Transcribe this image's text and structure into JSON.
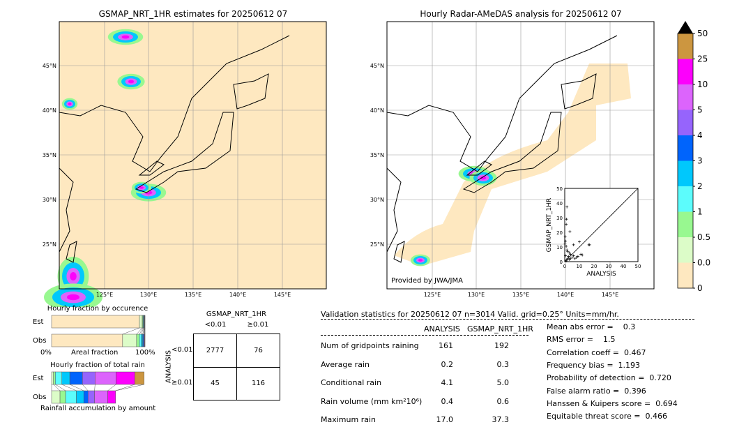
{
  "left_map": {
    "title": "GSMAP_NRT_1HR estimates for 20250612 07",
    "lon_ticks": [
      "125°E",
      "130°E",
      "135°E",
      "140°E",
      "145°E"
    ],
    "lat_ticks": [
      "45°N",
      "40°N",
      "35°N",
      "30°N",
      "25°N"
    ]
  },
  "right_map": {
    "title": "Hourly Radar-AMeDAS analysis for 20250612 07",
    "lon_ticks": [
      "125°E",
      "130°E",
      "135°E",
      "140°E",
      "145°E"
    ],
    "lat_ticks": [
      "45°N",
      "40°N",
      "35°N",
      "30°N",
      "25°N"
    ],
    "credit": "Provided by JWA/JMA"
  },
  "colorbar": {
    "labels": [
      "0",
      "0.01",
      "0.5",
      "1",
      "2",
      "3",
      "4",
      "5",
      "10",
      "25",
      "50"
    ],
    "colors": [
      "#fee8c0",
      "#dcfcc8",
      "#98f890",
      "#5cfcfc",
      "#00c8fc",
      "#0064fc",
      "#9664fc",
      "#dc64fc",
      "#fc00fc",
      "#cc9640"
    ],
    "extend_color": "#000000"
  },
  "chart_data": [
    {
      "type": "scatter",
      "xlabel": "ANALYSIS",
      "ylabel": "GSMAP_NRT_1HR",
      "xlim": [
        0,
        50
      ],
      "ylim": [
        0,
        50
      ],
      "ticks": [
        "0",
        "10",
        "20",
        "30",
        "40",
        "50"
      ],
      "points": [
        [
          1.5,
          37.3
        ],
        [
          1.2,
          29
        ],
        [
          1,
          25.5
        ],
        [
          3.5,
          20.5
        ],
        [
          0.3,
          17
        ],
        [
          0.5,
          14
        ],
        [
          10,
          13.5
        ],
        [
          6,
          11.5
        ],
        [
          16.5,
          11.5
        ],
        [
          17,
          11.5
        ],
        [
          1,
          10.5
        ],
        [
          2,
          7
        ],
        [
          3,
          6
        ],
        [
          4,
          5
        ],
        [
          11,
          5
        ],
        [
          12,
          4.5
        ],
        [
          9,
          3.5
        ],
        [
          8,
          3
        ],
        [
          5,
          3
        ],
        [
          2,
          2
        ],
        [
          1,
          1
        ],
        [
          0.5,
          4
        ],
        [
          3,
          1.5
        ],
        [
          6,
          4
        ],
        [
          7,
          2
        ],
        [
          1.5,
          8
        ],
        [
          0.2,
          12
        ],
        [
          2.5,
          3.5
        ],
        [
          4,
          2
        ],
        [
          1,
          0.5
        ]
      ]
    },
    {
      "type": "bar",
      "title": "Hourly fraction by occurence",
      "xlabel": "Areal fraction",
      "x_ticks": [
        "0%",
        "100%"
      ],
      "categories": [
        "Est",
        "Obs"
      ],
      "series_est": [
        0.94,
        0.03,
        0.008,
        0.006,
        0.005,
        0.004,
        0.003,
        0.002,
        0.001,
        0.001
      ],
      "series_obs": [
        0.76,
        0.15,
        0.03,
        0.02,
        0.015,
        0.01,
        0.006,
        0.005,
        0.003,
        0.001
      ]
    },
    {
      "type": "bar",
      "title": "Hourly fraction of total rain",
      "xlabel": "Rainfall accumulation by amount",
      "categories": [
        "Est",
        "Obs"
      ],
      "series_est": [
        0.0,
        0.02,
        0.02,
        0.07,
        0.085,
        0.135,
        0.135,
        0.225,
        0.2,
        0.1
      ],
      "series_obs": [
        0.0,
        0.09,
        0.06,
        0.115,
        0.08,
        0.045,
        0.07,
        0.14,
        0.085,
        0.0
      ]
    }
  ],
  "contingency": {
    "title": "GSMAP_NRT_1HR",
    "col_headers": [
      "<0.01",
      "≥0.01"
    ],
    "row_label": "ANALYSIS",
    "row_headers": [
      "<0.01",
      "≥0.01"
    ],
    "cells": [
      [
        "2777",
        "76"
      ],
      [
        "45",
        "116"
      ]
    ]
  },
  "validation": {
    "header": "Validation statistics for 20250612 07  n=3014 Valid. grid=0.25° Units=mm/hr.",
    "col_headers": [
      "ANALYSIS",
      "GSMAP_NRT_1HR"
    ],
    "rows": [
      {
        "label": "Num of gridpoints raining",
        "a": "161",
        "g": "192"
      },
      {
        "label": "Average rain",
        "a": "0.2",
        "g": "0.3"
      },
      {
        "label": "Conditional rain",
        "a": "4.1",
        "g": "5.0"
      },
      {
        "label": "Rain volume (mm km²10⁶)",
        "a": "0.4",
        "g": "0.6"
      },
      {
        "label": "Maximum rain",
        "a": "17.0",
        "g": "37.3"
      }
    ],
    "scores": [
      "Mean abs error =    0.3",
      "RMS error =    1.5",
      "Correlation coeff =  0.467",
      "Frequency bias =  1.193",
      "Probability of detection =  0.720",
      "False alarm ratio =  0.396",
      "Hanssen & Kuipers score =  0.694",
      "Equitable threat score =  0.466"
    ]
  }
}
